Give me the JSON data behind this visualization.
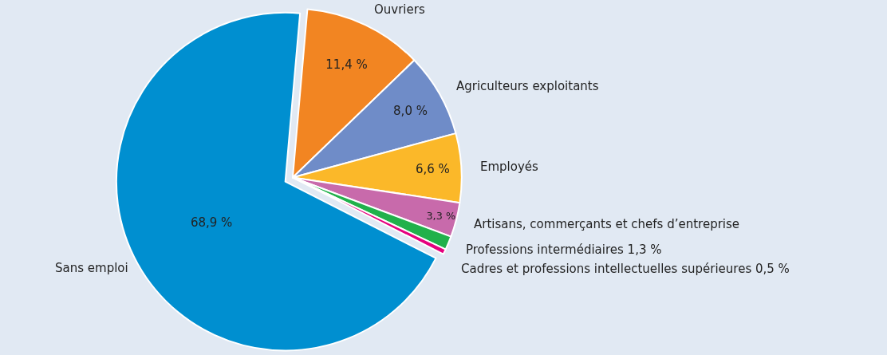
{
  "chart_data": {
    "type": "pie",
    "categories": [
      "Ouvriers",
      "Agriculteurs exploitants",
      "Employés",
      "Artisans, commerçants et chefs d’entreprise",
      "Professions intermédiaires",
      "Cadres et professions intellectuelles supérieures",
      "Sans emploi"
    ],
    "values": [
      11.4,
      8.0,
      6.6,
      3.3,
      1.3,
      0.5,
      68.9
    ],
    "value_labels": [
      "11,4 %",
      "8,0 %",
      "6,6 %",
      "3,3 %",
      "1,3 %",
      "0,5 %",
      "68,9 %"
    ],
    "colors": [
      "#f28522",
      "#6f8cc8",
      "#fbb829",
      "#c86aab",
      "#21b14b",
      "#e5007e",
      "#008fd0"
    ],
    "legend": false
  }
}
